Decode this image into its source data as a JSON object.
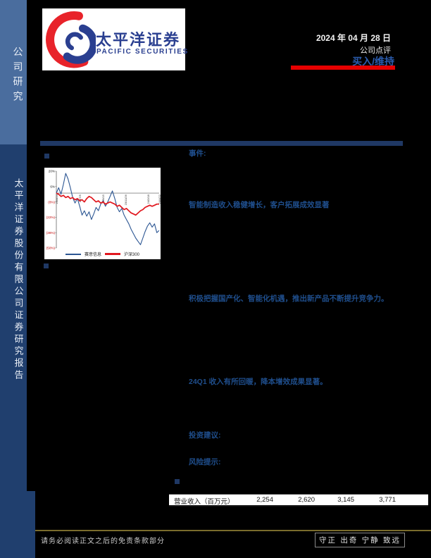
{
  "page": {
    "colors": {
      "accent-red": "#e60000",
      "heading-blue": "#1f4e8c",
      "bar-navy": "#1f3864",
      "rating-blue": "#2b5cae",
      "sidebar-light": "#4a6d9e",
      "sidebar-dark": "#203f6e",
      "footer-gold": "#7a6c2c",
      "chart-blue": "#2c5693",
      "chart-red": "#e1181f"
    }
  },
  "sidebar": {
    "top_label": "公司研究",
    "bottom_label": "太平洋证券股份有限公司证券研究报告"
  },
  "header": {
    "logo_cn": "太平洋证券",
    "logo_en": "PACIFIC SECURITIES",
    "date": "2024 年 04 月 28 日",
    "report_type": "公司点评",
    "rating": "买入/维持"
  },
  "body": {
    "event_label": "事件:",
    "heading_growth": "智能制造收入稳健增长，客户拓展成效显著",
    "heading_localization": "积极把握国产化、智能化机遇，推出新产品不断提升竞争力。",
    "heading_q1": "24Q1 收入有所回暖，降本增效成果显著。",
    "advice_label": "投资建议:",
    "risk_label": "风险提示:"
  },
  "table": {
    "row_label": "营业收入（百万元）",
    "values": [
      "2,254",
      "2,620",
      "3,145",
      "3,771"
    ]
  },
  "footer": {
    "disclaimer": "请务必阅读正文之后的免责条款部分",
    "motto": "守正 出奇 宁静 致远"
  },
  "chart_data": {
    "type": "line",
    "title": "",
    "xlabel": "",
    "ylabel": "",
    "ylim": [
      -50,
      20
    ],
    "grid": "zero-line-only",
    "legend_position": "bottom",
    "ytick_values": [
      20,
      6,
      -8,
      -22,
      -36,
      -50
    ],
    "ytick_labels": [
      "20%",
      "6%",
      "(8%)",
      "(22%)",
      "(36%)",
      "(50%)"
    ],
    "xtick_labels": [
      "23/4/24",
      "23/7/5",
      "23/9/15",
      "23/11/26",
      "24/2/18",
      "24/4/22"
    ],
    "series": [
      {
        "name": "赛意信息",
        "color": "#2c5693",
        "values": [
          0,
          5,
          -1,
          8,
          18,
          13,
          5,
          -4,
          -9,
          -5,
          -12,
          -20,
          -16,
          -21,
          -17,
          -24,
          -19,
          -13,
          -16,
          -10,
          -7,
          -12,
          -8,
          -3,
          2,
          -5,
          -13,
          -17,
          -14,
          -20,
          -24,
          -28,
          -33,
          -37,
          -41,
          -44,
          -47,
          -41,
          -35,
          -30,
          -27,
          -31,
          -28,
          -36,
          -34
        ]
      },
      {
        "name": "沪深300",
        "color": "#e1181f",
        "values": [
          0,
          -1,
          -3,
          -2,
          -4,
          -3,
          -5,
          -4,
          -6,
          -5,
          -7,
          -6,
          -8,
          -5,
          -3,
          -4,
          -6,
          -8,
          -7,
          -9,
          -8,
          -10,
          -9,
          -8,
          -9,
          -10,
          -12,
          -11,
          -13,
          -15,
          -14,
          -16,
          -18,
          -19,
          -20,
          -18,
          -16,
          -15,
          -13,
          -12,
          -11,
          -12,
          -11,
          -10,
          -10
        ]
      }
    ]
  }
}
